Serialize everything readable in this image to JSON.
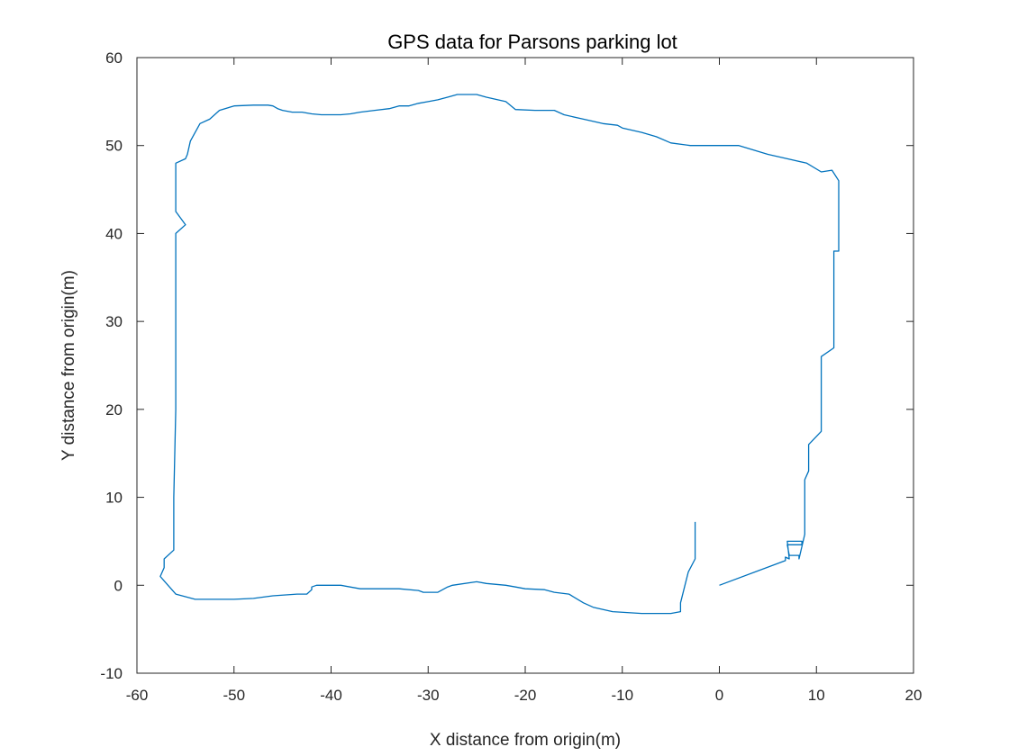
{
  "colors": {
    "series": "#0072bd",
    "axis": "#262626"
  },
  "chart_data": {
    "type": "line",
    "title": "GPS data for Parsons parking lot",
    "xlabel": "X distance from origin(m)",
    "ylabel": "Y distance from origin(m)",
    "xlim": [
      -60,
      20
    ],
    "ylim": [
      -10,
      60
    ],
    "xticks": [
      -60,
      -50,
      -40,
      -30,
      -20,
      -10,
      0,
      10,
      20
    ],
    "yticks": [
      -10,
      0,
      10,
      20,
      30,
      40,
      50,
      60
    ],
    "grid": false,
    "legend": "none",
    "series": [
      {
        "x": [
          0,
          6.8,
          6.8,
          7.2,
          7.0,
          8.5,
          8.5,
          7.0,
          7.2,
          8.2,
          8.2,
          8.8,
          8.8,
          9.2,
          9.2,
          10.5,
          10.5,
          11.8,
          11.8,
          12.3,
          12.3,
          11.6,
          10.5,
          9.0,
          7.0,
          5.0,
          2.0,
          0,
          -3.0,
          -5.0,
          -6.5,
          -8.0,
          -10.0,
          -10.5,
          -12.0,
          -14.0,
          -16.0,
          -17.0,
          -19.0,
          -21.0,
          -22.0,
          -24.0,
          -25.0,
          -27.0,
          -28.0,
          -29.0,
          -30.0,
          -31.0,
          -32.0,
          -33.0,
          -34.0,
          -35.5,
          -37.0,
          -38.0,
          -39.0,
          -40.0,
          -41.0,
          -42.0,
          -43.0,
          -44.0,
          -45.0,
          -45.5,
          -46.0,
          -46.5,
          -48.0,
          -50.0,
          -51.5,
          -52.5,
          -53.5,
          -54.5,
          -54.8,
          -55.0,
          -56.0,
          -56.0,
          -55.0,
          -56.0,
          -56.0,
          -56.0,
          -56.2,
          -56.2,
          -57.2,
          -57.2,
          -57.6,
          -57.2,
          -56.0,
          -54.0,
          -50.0,
          -48.0,
          -46.0,
          -43.5,
          -42.5,
          -42.0,
          -42.0,
          -41.5,
          -39.0,
          -37.0,
          -36.0,
          -35.0,
          -33.0,
          -31.0,
          -30.5,
          -29.0,
          -28.0,
          -27.5,
          -25.0,
          -24.0,
          -22.0,
          -21.0,
          -20.0,
          -18.0,
          -17.0,
          -15.5,
          -14.0,
          -13.0,
          -11.0,
          -8.0,
          -5.0,
          -4.0,
          -4.0,
          -3.2,
          -2.5,
          -2.5
        ],
        "y": [
          0,
          2.8,
          3.2,
          3.0,
          5.0,
          5.0,
          4.6,
          4.6,
          3.4,
          3.4,
          3.0,
          5.8,
          12.0,
          13.0,
          16.0,
          17.5,
          26.0,
          27.0,
          38.0,
          38.0,
          46.0,
          47.2,
          47.0,
          48.0,
          48.5,
          49.0,
          50.0,
          50.0,
          50.0,
          50.3,
          51.0,
          51.5,
          52.0,
          52.3,
          52.5,
          53.0,
          53.5,
          54.0,
          54.0,
          54.1,
          55.0,
          55.5,
          55.8,
          55.8,
          55.5,
          55.2,
          55.0,
          54.8,
          54.5,
          54.5,
          54.2,
          54.0,
          53.8,
          53.6,
          53.5,
          53.5,
          53.5,
          53.6,
          53.8,
          53.8,
          54.0,
          54.2,
          54.5,
          54.6,
          54.6,
          54.5,
          54.0,
          53.0,
          52.5,
          50.5,
          49.0,
          48.5,
          48.0,
          42.5,
          41.0,
          40.0,
          30.0,
          20.0,
          10.0,
          4.0,
          3.0,
          2.0,
          1.0,
          0.5,
          -1.0,
          -1.6,
          -1.6,
          -1.5,
          -1.2,
          -1.0,
          -1.0,
          -0.5,
          -0.2,
          0,
          0,
          -0.4,
          -0.4,
          -0.4,
          -0.4,
          -0.6,
          -0.8,
          -0.8,
          -0.2,
          0,
          0.4,
          0.2,
          0,
          -0.2,
          -0.4,
          -0.5,
          -0.8,
          -1.0,
          -2.0,
          -2.5,
          -3.0,
          -3.2,
          -3.2,
          -3.0,
          -2.0,
          1.5,
          3.0,
          7.2
        ]
      }
    ]
  }
}
